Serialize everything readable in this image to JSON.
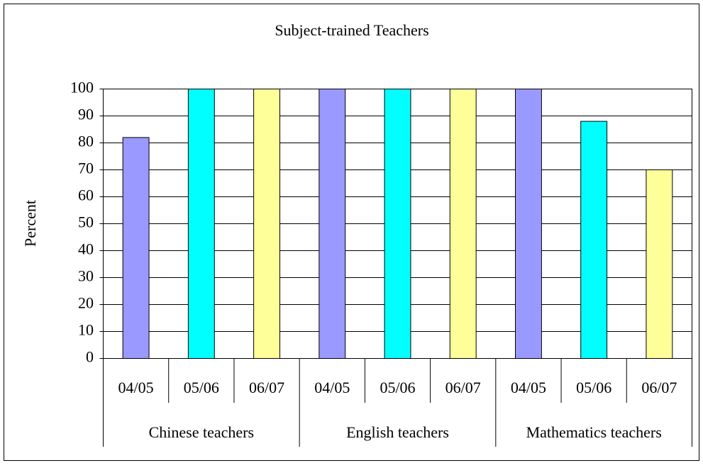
{
  "chart_data": {
    "type": "bar",
    "title": "Subject-trained Teachers",
    "ylabel": "Percent",
    "ylim": [
      0,
      100
    ],
    "yticks": [
      0,
      10,
      20,
      30,
      40,
      50,
      60,
      70,
      80,
      90,
      100
    ],
    "grid": true,
    "colors": [
      "#9999ff",
      "#00ffff",
      "#ffff99"
    ],
    "groups": [
      {
        "name": "Chinese teachers",
        "categories": [
          "04/05",
          "05/06",
          "06/07"
        ],
        "values": [
          82,
          100,
          100
        ]
      },
      {
        "name": "English teachers",
        "categories": [
          "04/05",
          "05/06",
          "06/07"
        ],
        "values": [
          100,
          100,
          100
        ]
      },
      {
        "name": "Mathematics teachers",
        "categories": [
          "04/05",
          "05/06",
          "06/07"
        ],
        "values": [
          100,
          88,
          70
        ]
      }
    ]
  }
}
